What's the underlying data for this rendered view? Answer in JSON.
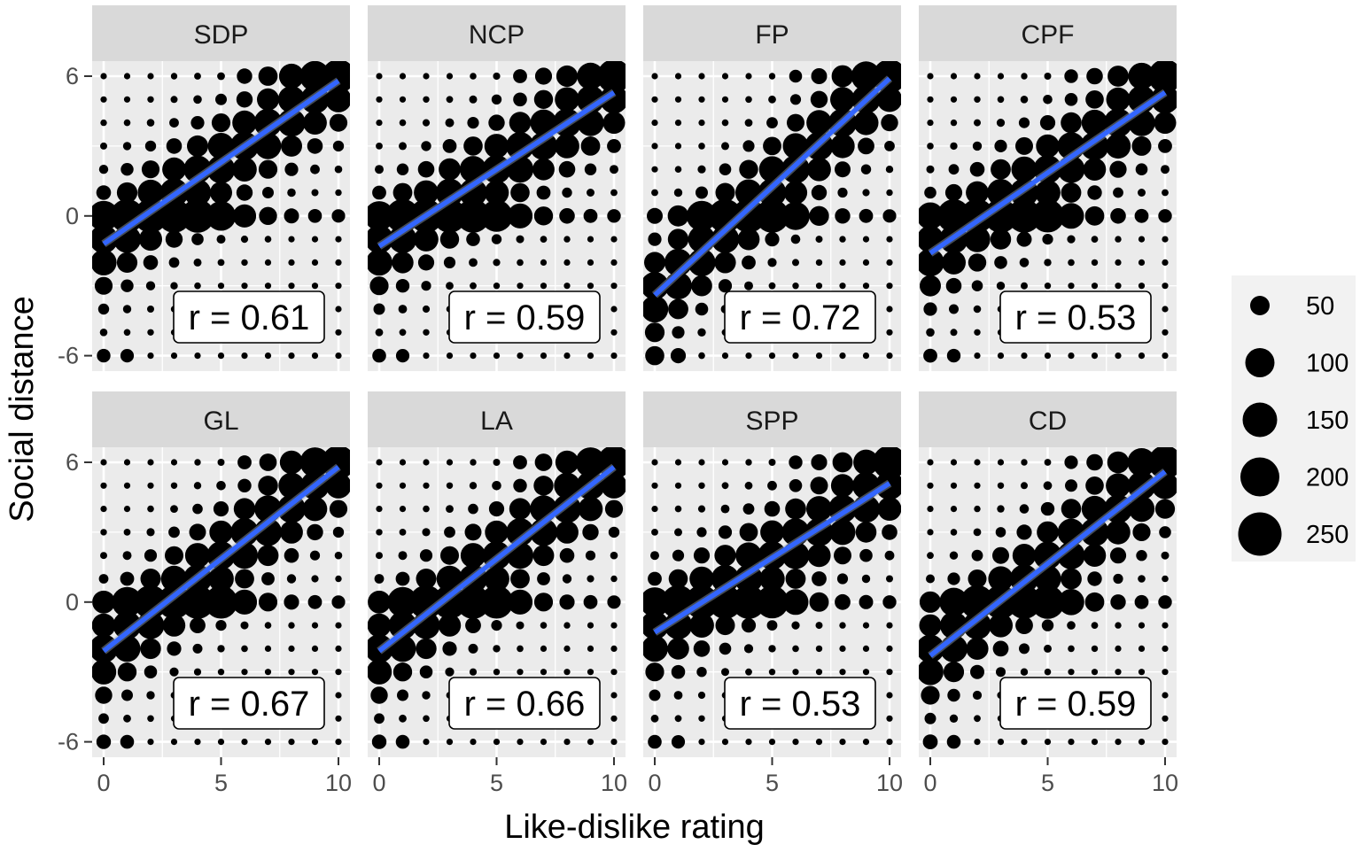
{
  "chart_data": {
    "type": "scatter",
    "xlabel": "Like-dislike rating",
    "ylabel": "Social distance",
    "xlim": [
      0,
      10
    ],
    "ylim": [
      -6,
      6
    ],
    "x_ticks": [
      "0",
      "5",
      "10"
    ],
    "y_ticks": [
      "6",
      "0",
      "-6"
    ],
    "grid": true,
    "legend_position": "right",
    "legend_sizes": [
      "50",
      "100",
      "150",
      "200",
      "250"
    ],
    "colors": {
      "points": "#000000",
      "fit_line": "#3366ff",
      "panel_bg": "#ebebeb",
      "strip_bg": "#d9d9d9",
      "legend_bg": "#f2f2f2"
    },
    "panels": [
      {
        "name": "SDP",
        "r_label": "r = 0.61",
        "fit": {
          "x": [
            0,
            10
          ],
          "y": [
            -1.2,
            5.8
          ]
        }
      },
      {
        "name": "NCP",
        "r_label": "r = 0.59",
        "fit": {
          "x": [
            0,
            10
          ],
          "y": [
            -1.3,
            5.3
          ]
        }
      },
      {
        "name": "FP",
        "r_label": "r = 0.72",
        "fit": {
          "x": [
            0,
            10
          ],
          "y": [
            -3.4,
            5.9
          ]
        }
      },
      {
        "name": "CPF",
        "r_label": "r = 0.53",
        "fit": {
          "x": [
            0,
            10
          ],
          "y": [
            -1.6,
            5.3
          ]
        }
      },
      {
        "name": "GL",
        "r_label": "r = 0.67",
        "fit": {
          "x": [
            0,
            10
          ],
          "y": [
            -2.1,
            5.8
          ]
        }
      },
      {
        "name": "LA",
        "r_label": "r = 0.66",
        "fit": {
          "x": [
            0,
            10
          ],
          "y": [
            -2.1,
            5.8
          ]
        }
      },
      {
        "name": "SPP",
        "r_label": "r = 0.53",
        "fit": {
          "x": [
            0,
            10
          ],
          "y": [
            -1.3,
            5.1
          ]
        }
      },
      {
        "name": "CD",
        "r_label": "r = 0.59",
        "fit": {
          "x": [
            0,
            10
          ],
          "y": [
            -2.3,
            5.6
          ]
        }
      }
    ]
  }
}
